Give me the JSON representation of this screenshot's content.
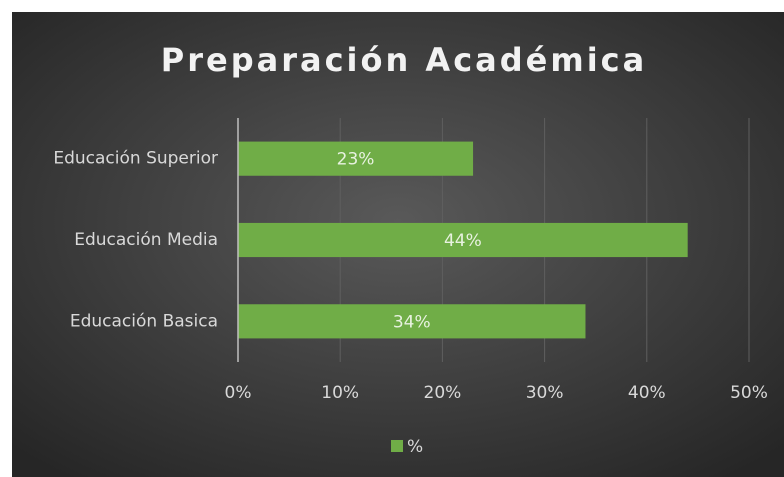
{
  "chart_data": {
    "type": "bar",
    "orientation": "horizontal",
    "title": "Preparación Académica",
    "categories": [
      "Educación Superior",
      "Educación Media",
      "Educación Basica"
    ],
    "series": [
      {
        "name": "%",
        "color": "#70ad47",
        "values": [
          23,
          44,
          34
        ],
        "value_labels": [
          "23%",
          "44%",
          "34%"
        ]
      }
    ],
    "xlim": [
      0,
      50
    ],
    "xticks": [
      {
        "value": 0,
        "label": "0%"
      },
      {
        "value": 10,
        "label": "10%"
      },
      {
        "value": 20,
        "label": "20%"
      },
      {
        "value": 30,
        "label": "30%"
      },
      {
        "value": 40,
        "label": "40%"
      },
      {
        "value": 50,
        "label": "50%"
      }
    ],
    "grid": true,
    "legend": "bottom"
  }
}
